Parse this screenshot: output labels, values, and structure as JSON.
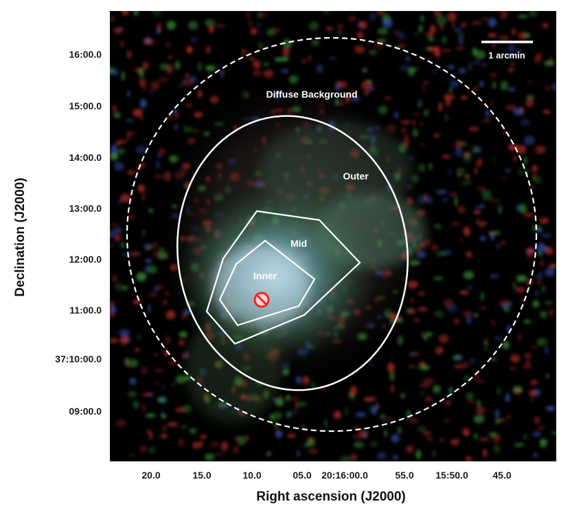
{
  "figure": {
    "scale_bar_label": "1 arcmin",
    "regions": {
      "diffuse_background": "Diffuse Background",
      "outer": "Outer",
      "mid": "Mid",
      "inner": "Inner"
    },
    "y_axis": {
      "label": "Declination (J2000)",
      "ticks": [
        "16:00.0",
        "15:00.0",
        "14:00.0",
        "13:00.0",
        "12:00.0",
        "11:00.0",
        "37:10:00.0",
        "09:00.0"
      ]
    },
    "x_axis": {
      "label": "Right ascension (J2000)",
      "ticks": [
        "20.0",
        "15.0",
        "10.0",
        "05.0",
        "20:16:00.0",
        "55.0",
        "15:50.0",
        "45.0"
      ]
    },
    "colors": {
      "background": "#000000",
      "region_lines": "#ffffff",
      "source_marker": "#ff2020",
      "red_band": "#c0302a",
      "green_band": "#3e9a3a",
      "blue_band": "#3a5cc8"
    },
    "marker_icon": "circle-slash-icon"
  }
}
